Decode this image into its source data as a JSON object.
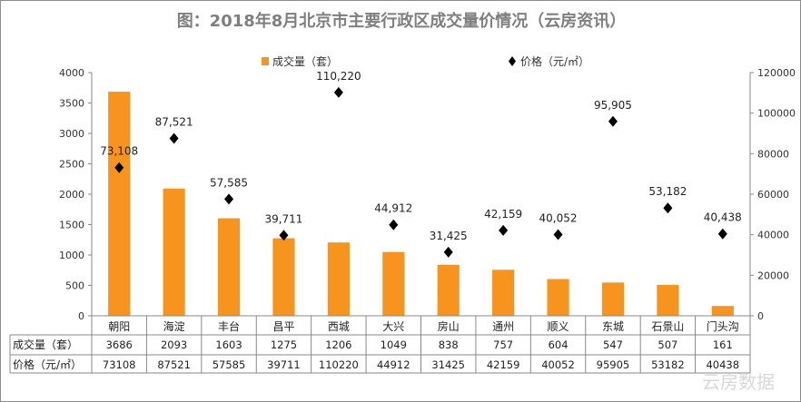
{
  "chart_data": {
    "type": "bar+scatter",
    "title": "图：2018年8月北京市主要行政区成交量价情况（云房资讯）",
    "categories": [
      "朝阳",
      "海淀",
      "丰台",
      "昌平",
      "西城",
      "大兴",
      "房山",
      "通州",
      "顺义",
      "东城",
      "石景山",
      "门头沟"
    ],
    "series": [
      {
        "name": "成交量（套）",
        "type": "bar",
        "axis": "left",
        "color": "#F7941D",
        "values": [
          3686,
          2093,
          1603,
          1275,
          1206,
          1049,
          838,
          757,
          604,
          547,
          507,
          161
        ]
      },
      {
        "name": "价格（元/㎡）",
        "type": "scatter",
        "axis": "right",
        "color": "#000000",
        "marker": "diamond",
        "values": [
          73108,
          87521,
          57585,
          39711,
          110220,
          44912,
          31425,
          42159,
          40052,
          95905,
          53182,
          40438
        ],
        "labels": [
          "73,108",
          "87,521",
          "57,585",
          "39,711",
          "110,220",
          "44,912",
          "31,425",
          "42,159",
          "40,052",
          "95,905",
          "53,182",
          "40,438"
        ]
      }
    ],
    "left_axis": {
      "range": [
        0,
        4000
      ],
      "ticks": [
        "0",
        "500",
        "1000",
        "1500",
        "2000",
        "2500",
        "3000",
        "3500",
        "4000"
      ]
    },
    "right_axis": {
      "range": [
        0,
        120000
      ],
      "ticks": [
        "0",
        "20000",
        "40000",
        "60000",
        "80000",
        "100000",
        "120000"
      ]
    },
    "legend_placement": "top",
    "grid": false,
    "data_table": {
      "rows": [
        {
          "label": "成交量（套）",
          "values": [
            "3686",
            "2093",
            "1603",
            "1275",
            "1206",
            "1049",
            "838",
            "757",
            "604",
            "547",
            "507",
            "161"
          ]
        },
        {
          "label": "价格（元/㎡）",
          "values": [
            "73108",
            "87521",
            "57585",
            "39711",
            "110220",
            "44912",
            "31425",
            "42159",
            "40052",
            "95905",
            "53182",
            "40438"
          ]
        }
      ]
    }
  },
  "watermark": "云房数据"
}
